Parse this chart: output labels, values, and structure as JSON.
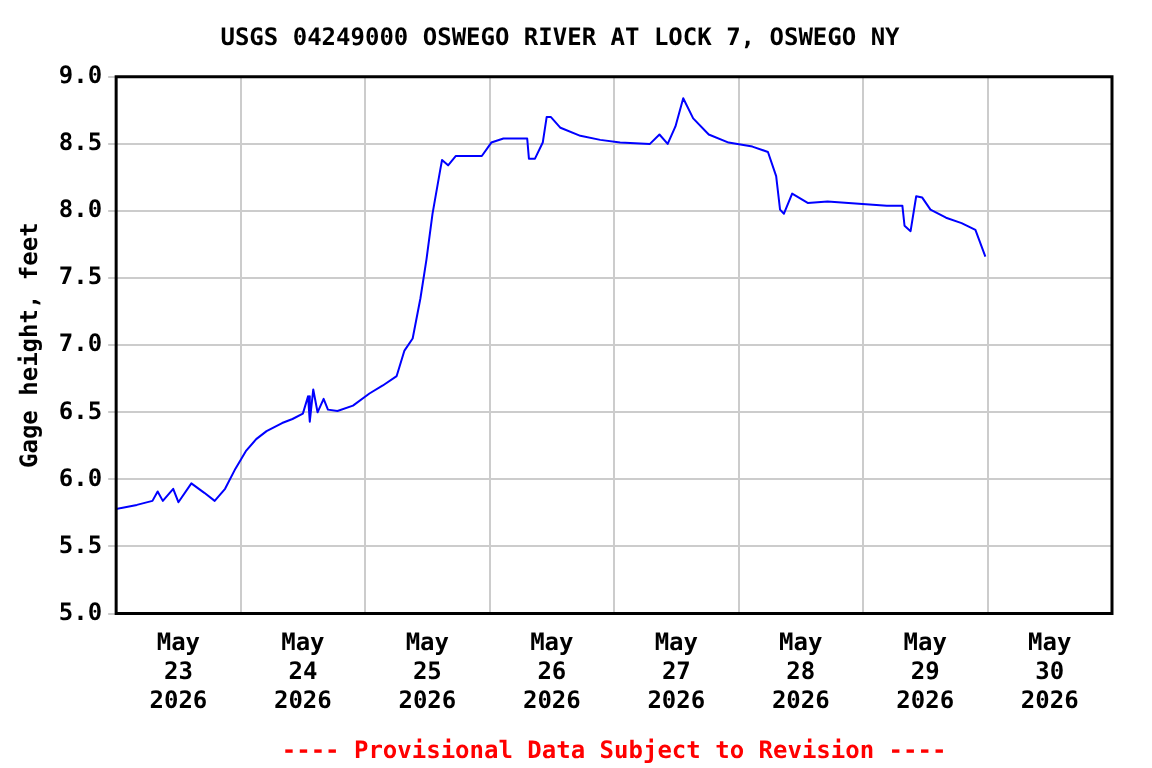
{
  "chart_data": {
    "type": "line",
    "title": "USGS 04249000 OSWEGO RIVER AT LOCK 7, OSWEGO NY",
    "ylabel": "Gage height, feet",
    "annotations": [
      "---- Provisional Data Subject to Revision ----"
    ],
    "x": [
      "2026-05-23T00:00",
      "2026-05-23T04:00",
      "2026-05-23T07:00",
      "2026-05-23T08:00",
      "2026-05-23T09:00",
      "2026-05-23T11:00",
      "2026-05-23T12:00",
      "2026-05-23T14:30",
      "2026-05-23T17:00",
      "2026-05-23T19:00",
      "2026-05-23T21:00",
      "2026-05-23T23:00",
      "2026-05-24T01:00",
      "2026-05-24T03:00",
      "2026-05-24T05:00",
      "2026-05-24T08:00",
      "2026-05-24T10:00",
      "2026-05-24T12:00",
      "2026-05-24T13:00",
      "2026-05-24T13:20",
      "2026-05-24T14:00",
      "2026-05-24T14:50",
      "2026-05-24T16:00",
      "2026-05-24T16:50",
      "2026-05-24T18:40",
      "2026-05-24T21:40",
      "2026-05-25T00:50",
      "2026-05-25T03:25",
      "2026-05-25T06:05",
      "2026-05-25T07:35",
      "2026-05-25T09:10",
      "2026-05-25T10:40",
      "2026-05-25T11:50",
      "2026-05-25T13:00",
      "2026-05-25T14:30",
      "2026-05-25T14:50",
      "2026-05-25T16:00",
      "2026-05-25T17:30",
      "2026-05-25T22:30",
      "2026-05-26T00:20",
      "2026-05-26T02:40",
      "2026-05-26T07:15",
      "2026-05-26T07:35",
      "2026-05-26T08:45",
      "2026-05-26T10:15",
      "2026-05-26T11:00",
      "2026-05-26T11:50",
      "2026-05-26T13:40",
      "2026-05-26T17:30",
      "2026-05-26T21:20",
      "2026-05-27T01:10",
      "2026-05-27T06:55",
      "2026-05-27T08:45",
      "2026-05-27T10:20",
      "2026-05-27T11:50",
      "2026-05-27T13:20",
      "2026-05-27T15:15",
      "2026-05-27T18:15",
      "2026-05-27T22:05",
      "2026-05-28T02:40",
      "2026-05-28T05:40",
      "2026-05-28T07:15",
      "2026-05-28T08:00",
      "2026-05-28T08:45",
      "2026-05-28T10:20",
      "2026-05-28T13:20",
      "2026-05-28T17:10",
      "2026-05-29T04:35",
      "2026-05-29T07:35",
      "2026-05-29T08:00",
      "2026-05-29T09:10",
      "2026-05-29T10:15",
      "2026-05-29T11:25",
      "2026-05-29T13:00",
      "2026-05-29T16:00",
      "2026-05-29T19:00",
      "2026-05-29T21:40",
      "2026-05-29T23:35"
    ],
    "series": [
      {
        "color": "#0000ff",
        "values": [
          5.78,
          5.81,
          5.84,
          5.91,
          5.84,
          5.93,
          5.83,
          5.97,
          5.9,
          5.84,
          5.93,
          6.08,
          6.21,
          6.3,
          6.36,
          6.42,
          6.45,
          6.49,
          6.62,
          6.43,
          6.67,
          6.5,
          6.6,
          6.52,
          6.51,
          6.55,
          6.64,
          6.7,
          6.77,
          6.96,
          7.05,
          7.35,
          7.64,
          7.98,
          8.31,
          8.38,
          8.34,
          8.41,
          8.41,
          8.51,
          8.54,
          8.54,
          8.39,
          8.39,
          8.51,
          8.7,
          8.7,
          8.62,
          8.56,
          8.53,
          8.51,
          8.5,
          8.57,
          8.5,
          8.63,
          8.84,
          8.69,
          8.57,
          8.51,
          8.48,
          8.44,
          8.26,
          8.01,
          7.98,
          8.13,
          8.06,
          8.07,
          8.04,
          8.04,
          7.89,
          7.85,
          8.11,
          8.1,
          8.01,
          7.95,
          7.91,
          7.86,
          7.66
        ]
      }
    ],
    "xlim": [
      "2026-05-23T00:00",
      "2026-05-31T00:00"
    ],
    "xticks": [
      {
        "value": "2026-05-23T12:00",
        "label": "May\n23\n2026"
      },
      {
        "value": "2026-05-24T00:00",
        "label": null
      },
      {
        "value": "2026-05-24T12:00",
        "label": "May\n24\n2026"
      },
      {
        "value": "2026-05-25T00:00",
        "label": null
      },
      {
        "value": "2026-05-25T12:00",
        "label": "May\n25\n2026"
      },
      {
        "value": "2026-05-26T00:00",
        "label": null
      },
      {
        "value": "2026-05-26T12:00",
        "label": "May\n26\n2026"
      },
      {
        "value": "2026-05-27T00:00",
        "label": null
      },
      {
        "value": "2026-05-27T12:00",
        "label": "May\n27\n2026"
      },
      {
        "value": "2026-05-28T00:00",
        "label": null
      },
      {
        "value": "2026-05-28T12:00",
        "label": "May\n28\n2026"
      },
      {
        "value": "2026-05-29T00:00",
        "label": null
      },
      {
        "value": "2026-05-29T12:00",
        "label": "May\n29\n2026"
      },
      {
        "value": "2026-05-30T00:00",
        "label": null
      },
      {
        "value": "2026-05-30T12:00",
        "label": "May\n30\n2026"
      }
    ],
    "ylim": [
      5,
      9
    ],
    "yticks": [
      {
        "value": 5,
        "label": "5.0"
      },
      {
        "value": 5.5,
        "label": "5.5"
      },
      {
        "value": 6,
        "label": "6.0"
      },
      {
        "value": 6.5,
        "label": "6.5"
      },
      {
        "value": 7,
        "label": "7.0"
      },
      {
        "value": 7.5,
        "label": "7.5"
      },
      {
        "value": 8,
        "label": "8.0"
      },
      {
        "value": 8.5,
        "label": "8.5"
      },
      {
        "value": 9,
        "label": "9.0"
      }
    ],
    "grid": true,
    "legend": false,
    "marker": "none",
    "line_style": "solid"
  }
}
